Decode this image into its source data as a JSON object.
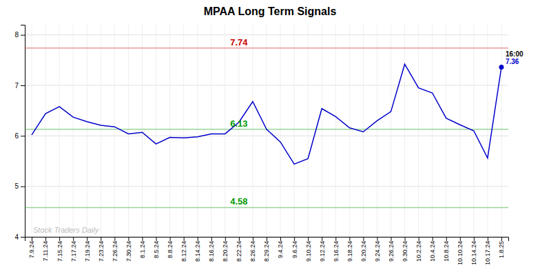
{
  "chart_data": {
    "type": "line",
    "title": "MPAA Long Term Signals",
    "categories": [
      "7.9.24",
      "7.11.24",
      "7.15.24",
      "7.17.24",
      "7.19.24",
      "7.23.24",
      "7.26.24",
      "7.30.24",
      "8.1.24",
      "8.5.24",
      "8.8.24",
      "8.12.24",
      "8.14.24",
      "8.16.24",
      "8.20.24",
      "8.22.24",
      "8.26.24",
      "8.29.24",
      "9.4.24",
      "9.6.24",
      "9.10.24",
      "9.12.24",
      "9.16.24",
      "9.18.24",
      "9.20.24",
      "9.24.24",
      "9.26.24",
      "9.30.24",
      "10.2.24",
      "10.4.24",
      "10.8.24",
      "10.10.24",
      "10.14.24",
      "10.17.24",
      "1.8.25"
    ],
    "values": [
      6.02,
      6.44,
      6.58,
      6.37,
      6.28,
      6.21,
      6.18,
      6.04,
      6.07,
      5.84,
      5.97,
      5.96,
      5.98,
      6.04,
      6.04,
      6.27,
      6.68,
      6.13,
      5.88,
      5.44,
      5.55,
      6.54,
      6.38,
      6.16,
      6.08,
      6.3,
      6.48,
      7.42,
      6.95,
      6.85,
      6.35,
      6.22,
      6.1,
      5.56,
      7.36
    ],
    "color": "#0000cc",
    "ylim": [
      4.0,
      8.2
    ],
    "yticks": [
      4,
      5,
      6,
      7,
      8
    ],
    "grid": true,
    "reference_lines": [
      {
        "value": 7.74,
        "label": "7.74",
        "color": "#cc0000"
      },
      {
        "value": 6.13,
        "label": "6.13",
        "color": "#009900"
      },
      {
        "value": 4.58,
        "label": "4.58",
        "color": "#009900"
      }
    ],
    "annotations": [
      {
        "text": "16:00",
        "color": "#000000"
      },
      {
        "text": "7.36",
        "color": "#0000cc"
      }
    ],
    "watermark": "Stock Traders Daily"
  }
}
